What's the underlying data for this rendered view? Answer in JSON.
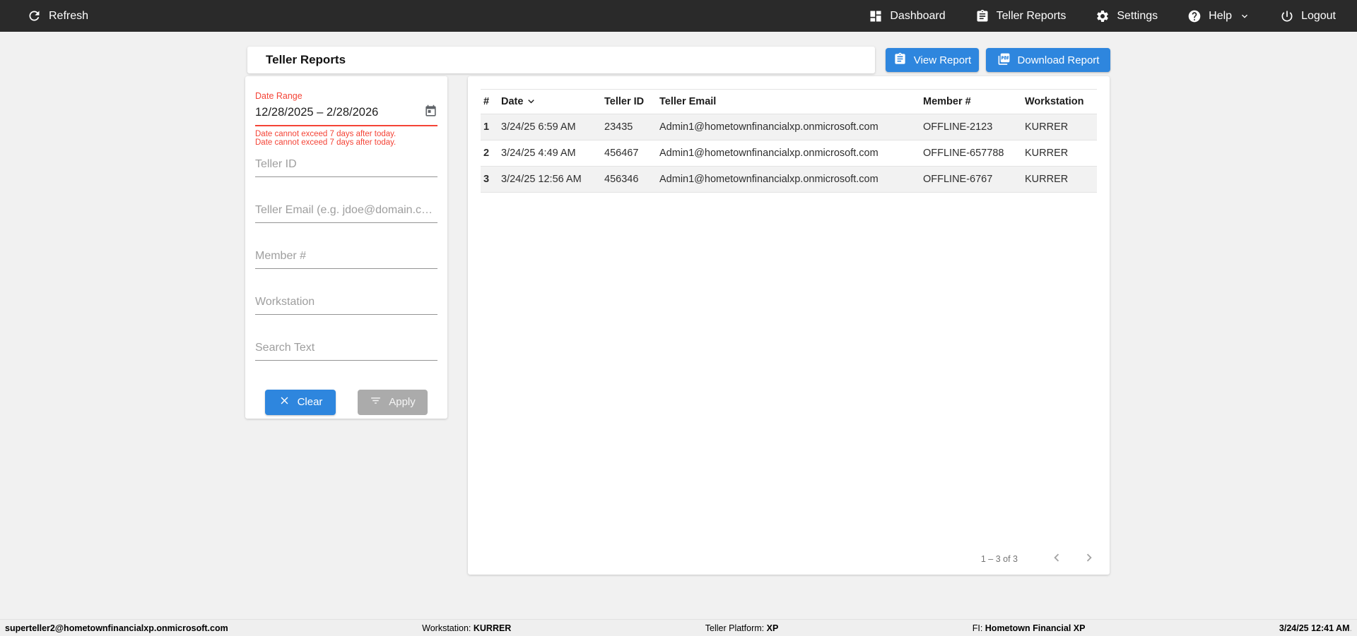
{
  "navbar": {
    "refresh_label": "Refresh",
    "items": [
      {
        "label": "Dashboard"
      },
      {
        "label": "Teller Reports"
      },
      {
        "label": "Settings"
      },
      {
        "label": "Help"
      },
      {
        "label": "Logout"
      }
    ]
  },
  "header": {
    "title": "Teller Reports",
    "view_report_label": "View Report",
    "download_report_label": "Download Report"
  },
  "filters": {
    "date_range": {
      "label": "Date Range",
      "value": "12/28/2025 – 2/28/2026",
      "errors": [
        "Date cannot exceed 7 days after today.",
        "Date cannot exceed 7 days after today."
      ]
    },
    "teller_id_placeholder": "Teller ID",
    "teller_email_placeholder": "Teller Email (e.g. jdoe@domain.c…",
    "member_placeholder": "Member #",
    "workstation_placeholder": "Workstation",
    "search_placeholder": "Search Text",
    "clear_label": "Clear",
    "apply_label": "Apply"
  },
  "table": {
    "columns": [
      "#",
      "Date",
      "Teller ID",
      "Teller Email",
      "Member #",
      "Workstation"
    ],
    "sorted_column": "Date",
    "sort_direction": "desc",
    "rows": [
      [
        "1",
        "3/24/25 6:59 AM",
        "23435",
        "Admin1@hometownfinancialxp.onmicrosoft.com",
        "OFFLINE-2123",
        "KURRER"
      ],
      [
        "2",
        "3/24/25 4:49 AM",
        "456467",
        "Admin1@hometownfinancialxp.onmicrosoft.com",
        "OFFLINE-657788",
        "KURRER"
      ],
      [
        "3",
        "3/24/25 12:56 AM",
        "456346",
        "Admin1@hometownfinancialxp.onmicrosoft.com",
        "OFFLINE-6767",
        "KURRER"
      ]
    ],
    "pagination": {
      "range_label": "1 – 3 of 3"
    }
  },
  "footer": {
    "user_email": "superteller2@hometownfinancialxp.onmicrosoft.com",
    "workstation_label": "Workstation: ",
    "workstation_value": "KURRER",
    "platform_label": "Teller Platform: ",
    "platform_value": "XP",
    "fi_label": "FI: ",
    "fi_value": "Hometown Financial XP",
    "datetime": "3/24/25 12:41 AM",
    "datetime_suffix": "."
  },
  "colors": {
    "accent_blue": "#2e86de",
    "error_red": "#f44336",
    "navbar_bg": "#2a2a2a",
    "row_stripe": "#f2f2f2"
  }
}
